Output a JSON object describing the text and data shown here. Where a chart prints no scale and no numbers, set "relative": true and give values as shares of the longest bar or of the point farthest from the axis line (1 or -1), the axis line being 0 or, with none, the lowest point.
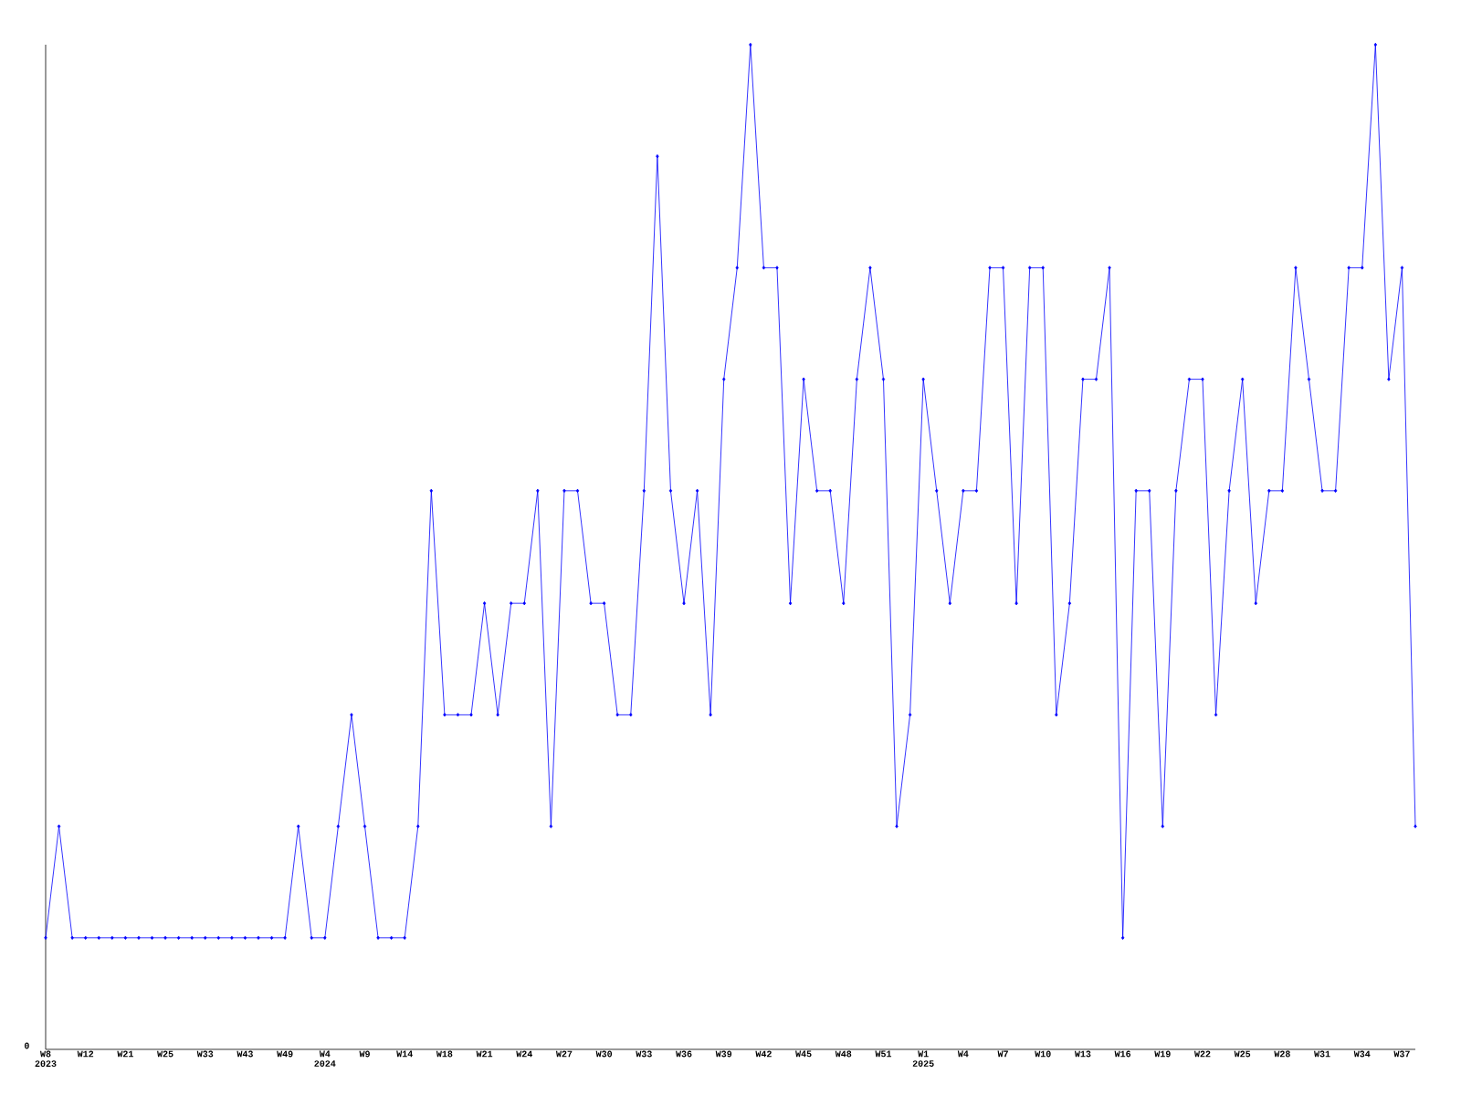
{
  "chart_data": {
    "type": "line",
    "relative": true,
    "color": "#0000ff",
    "marker": "diamond",
    "line_style": "solid",
    "grid": false,
    "annotations": [
      "0"
    ],
    "categories": [
      "W8 2023",
      null,
      null,
      "W12",
      null,
      null,
      "W21",
      null,
      null,
      "W25",
      null,
      null,
      "W33",
      null,
      null,
      "W43",
      null,
      null,
      "W49",
      null,
      null,
      "W4 2024",
      null,
      null,
      "W9",
      null,
      null,
      "W14",
      null,
      null,
      "W18",
      null,
      null,
      "W21",
      null,
      null,
      "W24",
      null,
      null,
      "W27",
      null,
      null,
      "W30",
      null,
      null,
      "W33",
      null,
      null,
      "W36",
      null,
      null,
      "W39",
      null,
      null,
      "W42",
      null,
      null,
      "W45",
      null,
      null,
      "W48",
      null,
      null,
      "W51",
      null,
      null,
      "W1 2025",
      null,
      null,
      "W4",
      null,
      null,
      "W7",
      null,
      null,
      "W10",
      null,
      null,
      "W13",
      null,
      null,
      "W16",
      null,
      null,
      "W19",
      null,
      null,
      "W22",
      null,
      null,
      "W25",
      null,
      null,
      "W28",
      null,
      null,
      "W31",
      null,
      null,
      "W34",
      null,
      null,
      "W37",
      null
    ],
    "values": [
      0.111,
      0.222,
      0.111,
      0.111,
      0.111,
      0.111,
      0.111,
      0.111,
      0.111,
      0.111,
      0.111,
      0.111,
      0.111,
      0.111,
      0.111,
      0.111,
      0.111,
      0.111,
      0.111,
      0.222,
      0.111,
      0.111,
      0.222,
      0.333,
      0.222,
      0.111,
      0.111,
      0.111,
      0.222,
      0.556,
      0.333,
      0.333,
      0.333,
      0.444,
      0.333,
      0.444,
      0.444,
      0.556,
      0.222,
      0.556,
      0.556,
      0.444,
      0.444,
      0.333,
      0.333,
      0.556,
      0.889,
      0.556,
      0.444,
      0.556,
      0.333,
      0.667,
      0.778,
      1,
      0.778,
      0.778,
      0.444,
      0.667,
      0.556,
      0.556,
      0.444,
      0.667,
      0.778,
      0.667,
      0.222,
      0.333,
      0.667,
      0.556,
      0.444,
      0.556,
      0.556,
      0.778,
      0.778,
      0.444,
      0.778,
      0.778,
      0.333,
      0.444,
      0.667,
      0.667,
      0.778,
      0.111,
      0.556,
      0.556,
      0.222,
      0.556,
      0.667,
      0.667,
      0.333,
      0.556,
      0.667,
      0.444,
      0.556,
      0.556,
      0.778,
      0.667,
      0.556,
      0.556,
      0.778,
      0.778,
      1,
      0.667,
      0.778,
      0.222
    ]
  }
}
